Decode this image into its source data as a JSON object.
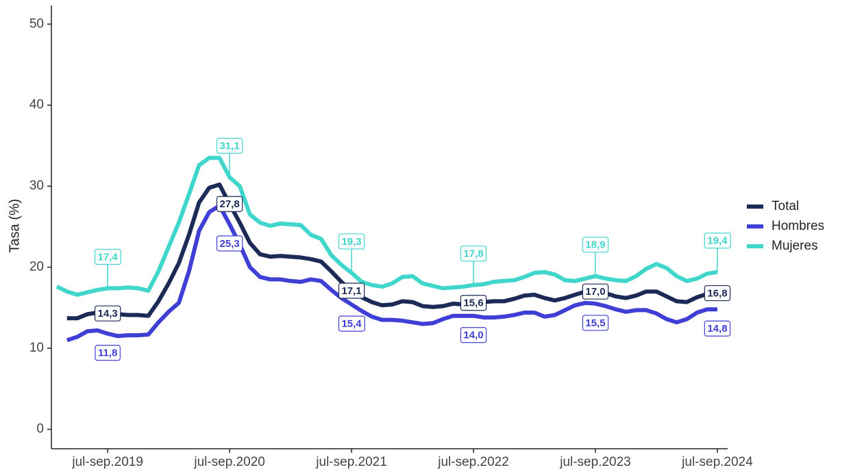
{
  "chart_data": {
    "type": "line",
    "y_label": "Tasa (%)",
    "categories": [
      null,
      null,
      null,
      null,
      null,
      "jul-sep.2019",
      null,
      null,
      null,
      null,
      null,
      null,
      null,
      null,
      null,
      null,
      null,
      "jul-sep.2020",
      null,
      null,
      null,
      null,
      null,
      null,
      null,
      null,
      null,
      null,
      null,
      "jul-sep.2021",
      null,
      null,
      null,
      null,
      null,
      null,
      null,
      null,
      null,
      null,
      null,
      "jul-sep.2022",
      null,
      null,
      null,
      null,
      null,
      null,
      null,
      null,
      null,
      null,
      null,
      "jul-sep.2023",
      null,
      null,
      null,
      null,
      null,
      null,
      null,
      null,
      null,
      null,
      null,
      "jul-sep.2024"
    ],
    "series": [
      {
        "name": "Total",
        "color": "#1b2a56",
        "values": [
          null,
          13.7,
          13.7,
          14.2,
          14.4,
          14.3,
          14.2,
          14.1,
          14.1,
          14.0,
          15.8,
          18.0,
          20.5,
          24.0,
          28.0,
          29.8,
          30.2,
          27.8,
          25.5,
          23.0,
          21.6,
          21.3,
          21.4,
          21.3,
          21.2,
          21.0,
          20.7,
          19.5,
          18.2,
          17.1,
          16.3,
          15.7,
          15.3,
          15.4,
          15.8,
          15.7,
          15.2,
          15.1,
          15.2,
          15.5,
          15.4,
          15.6,
          15.7,
          15.8,
          15.8,
          16.1,
          16.5,
          16.6,
          16.2,
          15.9,
          16.2,
          16.6,
          17.0,
          17.0,
          16.8,
          16.4,
          16.2,
          16.5,
          17.0,
          17.0,
          16.4,
          15.8,
          15.7,
          16.3,
          16.7,
          16.8
        ],
        "value_labels": [
          null,
          null,
          null,
          null,
          null,
          "14,3",
          null,
          null,
          null,
          null,
          null,
          null,
          null,
          null,
          null,
          null,
          null,
          "27,8",
          null,
          null,
          null,
          null,
          null,
          null,
          null,
          null,
          null,
          null,
          null,
          "17,1",
          null,
          null,
          null,
          null,
          null,
          null,
          null,
          null,
          null,
          null,
          null,
          "15,6",
          null,
          null,
          null,
          null,
          null,
          null,
          null,
          null,
          null,
          null,
          null,
          "17,0",
          null,
          null,
          null,
          null,
          null,
          null,
          null,
          null,
          null,
          null,
          null,
          "16,8"
        ]
      },
      {
        "name": "Hombres",
        "color": "#3f3fd6",
        "values": [
          null,
          11.0,
          11.4,
          12.1,
          12.2,
          11.8,
          11.5,
          11.6,
          11.6,
          11.7,
          13.2,
          14.5,
          15.6,
          19.5,
          24.5,
          26.8,
          27.6,
          25.3,
          22.8,
          20.0,
          18.8,
          18.5,
          18.5,
          18.3,
          18.2,
          18.5,
          18.3,
          17.2,
          16.2,
          15.4,
          14.6,
          13.9,
          13.5,
          13.5,
          13.4,
          13.2,
          13.0,
          13.1,
          13.6,
          14.0,
          14.0,
          14.0,
          13.8,
          13.8,
          13.9,
          14.1,
          14.4,
          14.4,
          13.9,
          14.1,
          14.7,
          15.3,
          15.6,
          15.5,
          15.2,
          14.8,
          14.5,
          14.7,
          14.7,
          14.3,
          13.6,
          13.2,
          13.6,
          14.4,
          14.8,
          14.8
        ],
        "value_labels": [
          null,
          null,
          null,
          null,
          null,
          "11,8",
          null,
          null,
          null,
          null,
          null,
          null,
          null,
          null,
          null,
          null,
          null,
          "25,3",
          null,
          null,
          null,
          null,
          null,
          null,
          null,
          null,
          null,
          null,
          null,
          "15,4",
          null,
          null,
          null,
          null,
          null,
          null,
          null,
          null,
          null,
          null,
          null,
          "14,0",
          null,
          null,
          null,
          null,
          null,
          null,
          null,
          null,
          null,
          null,
          null,
          "15,5",
          null,
          null,
          null,
          null,
          null,
          null,
          null,
          null,
          null,
          null,
          null,
          "14,8"
        ]
      },
      {
        "name": "Mujeres",
        "color": "#40d6cc",
        "values": [
          17.6,
          17.0,
          16.6,
          16.9,
          17.2,
          17.4,
          17.4,
          17.5,
          17.4,
          17.1,
          19.5,
          22.5,
          25.5,
          29.0,
          32.6,
          33.5,
          33.5,
          31.1,
          30.0,
          26.5,
          25.5,
          25.1,
          25.4,
          25.3,
          25.2,
          24.0,
          23.5,
          21.5,
          20.3,
          19.3,
          18.2,
          17.8,
          17.6,
          18.0,
          18.8,
          18.9,
          18.0,
          17.7,
          17.4,
          17.5,
          17.6,
          17.8,
          17.9,
          18.2,
          18.3,
          18.4,
          18.8,
          19.3,
          19.4,
          19.1,
          18.4,
          18.3,
          18.6,
          18.9,
          18.6,
          18.4,
          18.3,
          18.9,
          19.8,
          20.4,
          19.9,
          18.9,
          18.3,
          18.6,
          19.2,
          19.4
        ],
        "value_labels": [
          null,
          null,
          null,
          null,
          null,
          "17,4",
          null,
          null,
          null,
          null,
          null,
          null,
          null,
          null,
          null,
          null,
          null,
          "31,1",
          null,
          null,
          null,
          null,
          null,
          null,
          null,
          null,
          null,
          null,
          null,
          "19,3",
          null,
          null,
          null,
          null,
          null,
          null,
          null,
          null,
          null,
          null,
          null,
          "17,8",
          null,
          null,
          null,
          null,
          null,
          null,
          null,
          null,
          null,
          null,
          null,
          "18,9",
          null,
          null,
          null,
          null,
          null,
          null,
          null,
          null,
          null,
          null,
          null,
          "19,4"
        ]
      }
    ],
    "ylim": [
      -2.4,
      52.3
    ],
    "yticks": [
      0,
      10,
      20,
      30,
      40,
      50
    ],
    "grid": false,
    "legend": "right"
  }
}
